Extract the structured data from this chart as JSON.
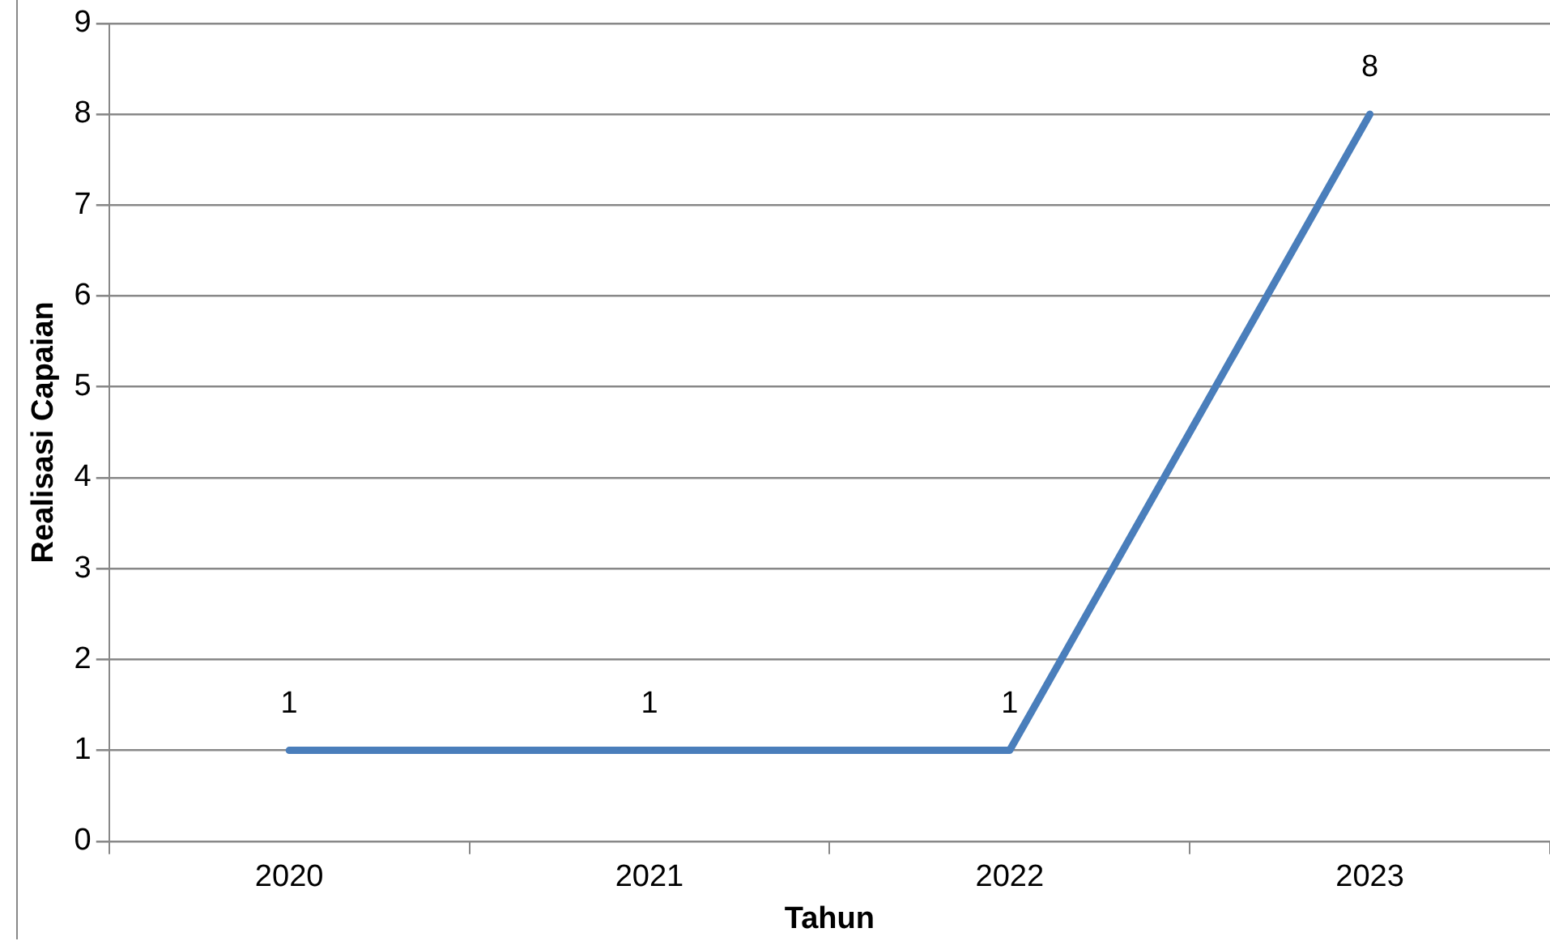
{
  "chart_data": {
    "type": "line",
    "xlabel": "Tahun",
    "ylabel": "Realisasi Capaian",
    "categories": [
      "2020",
      "2021",
      "2022",
      "2023"
    ],
    "series": [
      {
        "color": "#4a7ebb",
        "values": [
          1,
          1,
          1,
          8
        ]
      }
    ],
    "ylim": [
      0,
      9
    ],
    "yticks": [
      0,
      1,
      2,
      3,
      4,
      5,
      6,
      7,
      8,
      9
    ],
    "grid": "y",
    "legend": false,
    "marker": "none",
    "line_style": "solid",
    "data_labels": true
  }
}
